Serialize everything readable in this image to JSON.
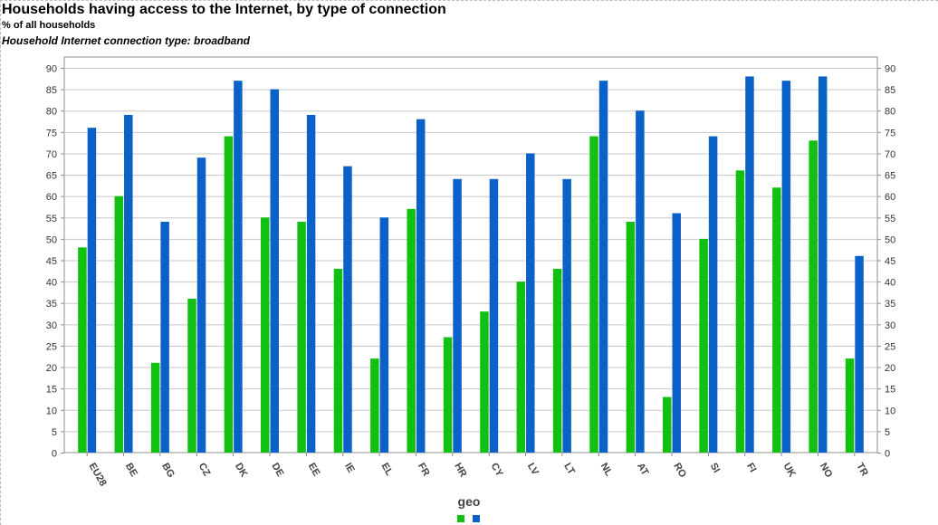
{
  "title": "Households having access to the Internet, by type of connection",
  "subtitle": "% of all households",
  "filter_label": "Household Internet connection type: broadband",
  "legend_title": "geo",
  "colors": {
    "series_1": "#12c012",
    "series_2": "#0a62c9",
    "grid": "#c8c8c8",
    "axis": "#8c8c8c"
  },
  "chart_data": {
    "type": "bar",
    "categories": [
      "EU28",
      "BE",
      "BG",
      "CZ",
      "DK",
      "DE",
      "EE",
      "IE",
      "EL",
      "FR",
      "HR",
      "CY",
      "LV",
      "LT",
      "NL",
      "AT",
      "RO",
      "SI",
      "FI",
      "UK",
      "NO",
      "TR"
    ],
    "series": [
      {
        "values": [
          48,
          60,
          21,
          36,
          74,
          55,
          54,
          43,
          22,
          57,
          27,
          33,
          40,
          43,
          74,
          54,
          13,
          50,
          66,
          62,
          73,
          22
        ]
      },
      {
        "values": [
          76,
          79,
          54,
          69,
          87,
          85,
          79,
          67,
          55,
          78,
          64,
          64,
          70,
          64,
          87,
          80,
          56,
          74,
          88,
          87,
          88,
          46
        ]
      }
    ],
    "ylim": [
      0,
      90
    ],
    "yticks": [
      0,
      5,
      10,
      15,
      20,
      25,
      30,
      35,
      40,
      45,
      50,
      55,
      60,
      65,
      70,
      75,
      80,
      85,
      90
    ],
    "grid": true,
    "right_axis": true,
    "legend_position": "bottom-center"
  }
}
